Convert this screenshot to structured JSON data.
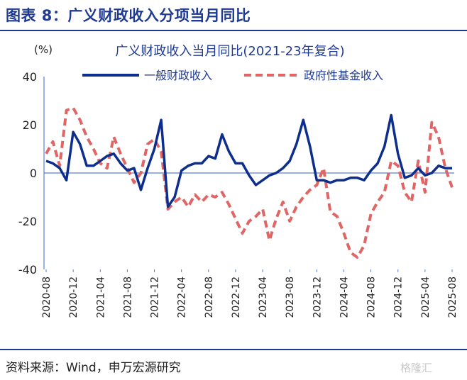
{
  "figure": {
    "title": "图表 8：广义财政收入分项当月同比",
    "source": "资料来源：Wind，申万宏源研究",
    "watermark": "格隆汇"
  },
  "colors": {
    "accent": "#1f3a93",
    "series1": "#0d2e8c",
    "series2": "#e06666"
  },
  "chart_data": {
    "type": "line",
    "title": "广义财政收入当月同比(2021-23年复合)",
    "unit_label": "(%)",
    "ylim": [
      -40,
      40
    ],
    "yticks": [
      -40,
      -20,
      0,
      20,
      40
    ],
    "x_tick_labels": [
      "2020-08",
      "2020-12",
      "2021-04",
      "2021-08",
      "2021-12",
      "2022-04",
      "2022-08",
      "2022-12",
      "2023-04",
      "2023-08",
      "2023-12",
      "2024-04",
      "2024-08",
      "2024-12",
      "2025-04",
      "2025-08"
    ],
    "x_start": "2020-08",
    "legend_position": "top",
    "grid": false,
    "series": [
      {
        "name": "一般财政收入",
        "style": "solid",
        "x": [
          "2020-08",
          "2020-09",
          "2020-10",
          "2020-11",
          "2020-12",
          "2021-01",
          "2021-02",
          "2021-03",
          "2021-04",
          "2021-05",
          "2021-06",
          "2021-07",
          "2021-08",
          "2021-09",
          "2021-10",
          "2021-11",
          "2021-12",
          "2022-01",
          "2022-02",
          "2022-03",
          "2022-04",
          "2022-05",
          "2022-06",
          "2022-07",
          "2022-08",
          "2022-09",
          "2022-10",
          "2022-11",
          "2022-12",
          "2023-01",
          "2023-02",
          "2023-03",
          "2023-04",
          "2023-05",
          "2023-06",
          "2023-07",
          "2023-08",
          "2023-09",
          "2023-10",
          "2023-11",
          "2023-12",
          "2024-01",
          "2024-02",
          "2024-03",
          "2024-04",
          "2024-05",
          "2024-06",
          "2024-07",
          "2024-08",
          "2024-09",
          "2024-10",
          "2024-11",
          "2024-12",
          "2025-01",
          "2025-02",
          "2025-03",
          "2025-04",
          "2025-05",
          "2025-06",
          "2025-07",
          "2025-08"
        ],
        "values": [
          5,
          4,
          2,
          -3,
          17,
          12,
          3,
          3,
          5,
          7,
          8,
          4,
          1,
          2,
          -7,
          2,
          10,
          22,
          -14,
          -10,
          1,
          3,
          4,
          4,
          7,
          6,
          16,
          9,
          4,
          4,
          -1,
          -5,
          -3,
          -1,
          0,
          2,
          5,
          12,
          22,
          11,
          -3,
          -3,
          -4,
          -3,
          -3,
          -2,
          -2,
          -3,
          1,
          4,
          11,
          24,
          8,
          -2,
          -1,
          2,
          -1,
          0,
          3,
          2,
          2
        ]
      },
      {
        "name": "政府性基金收入",
        "style": "dashed",
        "x": [
          "2020-08",
          "2020-09",
          "2020-10",
          "2020-11",
          "2020-12",
          "2021-01",
          "2021-02",
          "2021-03",
          "2021-04",
          "2021-05",
          "2021-06",
          "2021-07",
          "2021-08",
          "2021-09",
          "2021-10",
          "2021-11",
          "2021-12",
          "2022-01",
          "2022-02",
          "2022-03",
          "2022-04",
          "2022-05",
          "2022-06",
          "2022-07",
          "2022-08",
          "2022-09",
          "2022-10",
          "2022-11",
          "2022-12",
          "2023-01",
          "2023-02",
          "2023-03",
          "2023-04",
          "2023-05",
          "2023-06",
          "2023-07",
          "2023-08",
          "2023-09",
          "2023-10",
          "2023-11",
          "2023-12",
          "2024-01",
          "2024-02",
          "2024-03",
          "2024-04",
          "2024-05",
          "2024-06",
          "2024-07",
          "2024-08",
          "2024-09",
          "2024-10",
          "2024-11",
          "2024-12",
          "2025-01",
          "2025-02",
          "2025-03",
          "2025-04",
          "2025-05",
          "2025-06",
          "2025-07",
          "2025-08"
        ],
        "values": [
          8,
          13,
          3,
          26,
          27,
          22,
          15,
          10,
          4,
          2,
          15,
          8,
          2,
          -4,
          0,
          12,
          14,
          9,
          -15,
          -12,
          -10,
          -14,
          -9,
          -12,
          -9,
          -10,
          -8,
          -13,
          -19,
          -25,
          -20,
          -18,
          -15,
          -28,
          -19,
          -12,
          -20,
          -14,
          -10,
          -7,
          -5,
          2,
          -16,
          -18,
          -25,
          -33,
          -35,
          -30,
          -17,
          -12,
          -8,
          5,
          3,
          -8,
          -12,
          5,
          -8,
          21,
          15,
          2,
          -6
        ]
      }
    ]
  }
}
